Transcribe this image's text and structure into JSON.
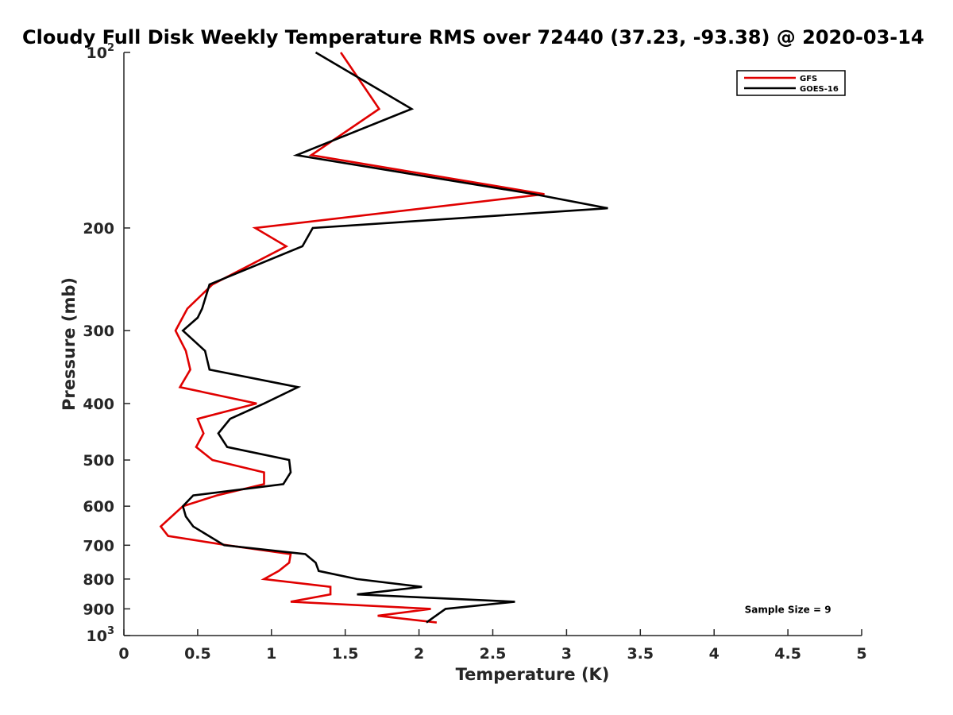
{
  "chart_data": {
    "type": "line",
    "title": "Cloudy Full Disk Weekly Temperature RMS over 72440 (37.23, -93.38) @ 2020-03-14",
    "xlabel": "Temperature (K)",
    "ylabel": "Pressure (mb)",
    "xlim": [
      0,
      5
    ],
    "ylim": [
      100,
      1000
    ],
    "y_scale": "log",
    "y_reversed": true,
    "grid": false,
    "legend_position": "top-right",
    "x_ticks": [
      "0",
      "0.5",
      "1",
      "1.5",
      "2",
      "2.5",
      "3",
      "3.5",
      "4",
      "4.5",
      "5"
    ],
    "y_ticks": [
      {
        "p": 100,
        "base": "10",
        "exp": "2"
      },
      {
        "p": 200,
        "label": "200"
      },
      {
        "p": 300,
        "label": "300"
      },
      {
        "p": 400,
        "label": "400"
      },
      {
        "p": 500,
        "label": "500"
      },
      {
        "p": 600,
        "label": "600"
      },
      {
        "p": 700,
        "label": "700"
      },
      {
        "p": 800,
        "label": "800"
      },
      {
        "p": 900,
        "label": "900"
      },
      {
        "p": 1000,
        "base": "10",
        "exp": "3"
      }
    ],
    "series": [
      {
        "name": "GFS",
        "color": "#e00000",
        "points": [
          [
            1.47,
            100
          ],
          [
            1.73,
            125
          ],
          [
            1.27,
            150
          ],
          [
            2.85,
            175
          ],
          [
            0.89,
            200
          ],
          [
            1.1,
            215
          ],
          [
            0.6,
            250
          ],
          [
            0.43,
            275
          ],
          [
            0.35,
            300
          ],
          [
            0.42,
            325
          ],
          [
            0.45,
            350
          ],
          [
            0.38,
            375
          ],
          [
            0.9,
            400
          ],
          [
            0.5,
            425
          ],
          [
            0.54,
            450
          ],
          [
            0.49,
            475
          ],
          [
            0.6,
            500
          ],
          [
            0.95,
            525
          ],
          [
            0.95,
            550
          ],
          [
            0.63,
            575
          ],
          [
            0.4,
            600
          ],
          [
            0.25,
            650
          ],
          [
            0.3,
            675
          ],
          [
            0.7,
            700
          ],
          [
            1.13,
            725
          ],
          [
            1.12,
            750
          ],
          [
            1.05,
            775
          ],
          [
            0.95,
            800
          ],
          [
            1.4,
            825
          ],
          [
            1.4,
            850
          ],
          [
            1.13,
            875
          ],
          [
            2.08,
            900
          ],
          [
            1.72,
            925
          ],
          [
            2.12,
            950
          ]
        ]
      },
      {
        "name": "GOES-16",
        "color": "#000000",
        "points": [
          [
            1.3,
            100
          ],
          [
            1.95,
            125
          ],
          [
            1.17,
            150
          ],
          [
            2.78,
            175
          ],
          [
            3.28,
            185
          ],
          [
            1.28,
            200
          ],
          [
            1.21,
            215
          ],
          [
            0.58,
            250
          ],
          [
            0.53,
            275
          ],
          [
            0.5,
            285
          ],
          [
            0.4,
            300
          ],
          [
            0.55,
            325
          ],
          [
            0.58,
            350
          ],
          [
            1.18,
            375
          ],
          [
            0.95,
            400
          ],
          [
            0.72,
            425
          ],
          [
            0.64,
            450
          ],
          [
            0.7,
            475
          ],
          [
            1.12,
            500
          ],
          [
            1.13,
            525
          ],
          [
            1.08,
            550
          ],
          [
            0.47,
            575
          ],
          [
            0.4,
            600
          ],
          [
            0.42,
            625
          ],
          [
            0.47,
            650
          ],
          [
            0.68,
            700
          ],
          [
            1.23,
            725
          ],
          [
            1.3,
            750
          ],
          [
            1.32,
            775
          ],
          [
            1.58,
            800
          ],
          [
            2.02,
            825
          ],
          [
            1.58,
            850
          ],
          [
            2.65,
            875
          ],
          [
            2.18,
            900
          ],
          [
            2.05,
            950
          ]
        ]
      }
    ],
    "annotations": [
      {
        "text": "Sample Size = 9",
        "x": 4.5,
        "p": 900
      }
    ]
  }
}
